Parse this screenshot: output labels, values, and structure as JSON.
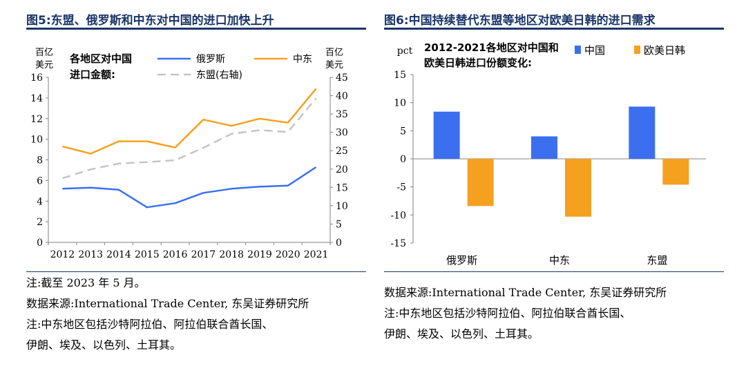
{
  "left": {
    "title": "图5:东盟、俄罗斯和中东对中国的进口加快上升",
    "notes": [
      "注:截至 2023 年 5 月。",
      "数据来源:International Trade Center, 东吴证券研究所",
      "注:中东地区包括沙特阿拉伯、阿拉伯联合酋长国、",
      "伊朗、埃及、以色列、土耳其。"
    ],
    "chart_data": {
      "type": "line",
      "title": "各地区对中国进口金额:",
      "x": [
        "2012",
        "2013",
        "2014",
        "2015",
        "2016",
        "2017",
        "2018",
        "2019",
        "2020",
        "2021"
      ],
      "left_axis_unit": "百亿美元",
      "right_axis_unit": "百亿美元",
      "left_ylim": [
        0,
        16
      ],
      "left_ticks": [
        "0",
        "2",
        "4",
        "6",
        "8",
        "10",
        "12",
        "14",
        "16"
      ],
      "right_ylim": [
        0,
        45
      ],
      "right_ticks": [
        "0",
        "5",
        "10",
        "15",
        "20",
        "25",
        "30",
        "35",
        "40",
        "45"
      ],
      "series": [
        {
          "name": "俄罗斯",
          "axis": "left",
          "color": "#3b6ff0",
          "dash": false,
          "values": [
            5.2,
            5.3,
            5.1,
            3.4,
            3.8,
            4.8,
            5.2,
            5.4,
            5.5,
            7.3
          ]
        },
        {
          "name": "中东",
          "axis": "left",
          "color": "#f5a01f",
          "dash": false,
          "values": [
            9.3,
            8.6,
            9.8,
            9.8,
            9.2,
            11.9,
            11.3,
            12.0,
            11.6,
            14.9
          ]
        },
        {
          "name": "东盟(右轴)",
          "axis": "right",
          "color": "#c4c4c4",
          "dash": true,
          "values": [
            17.5,
            19.9,
            21.5,
            21.9,
            22.4,
            25.8,
            29.6,
            30.6,
            30.1,
            39.3
          ]
        }
      ]
    }
  },
  "right": {
    "title": "图6:中国持续替代东盟等地区对欧美日韩的进口需求",
    "notes": [
      "数据来源:International Trade Center, 东吴证券研究所",
      "注:中东地区包括沙特阿拉伯、阿拉伯联合酋长国、",
      "伊朗、埃及、以色列、土耳其。"
    ],
    "chart_data": {
      "type": "bar",
      "title": [
        "2012-2021各地区对中国和",
        "欧美日韩进口份额变化:"
      ],
      "ylabel": "pct",
      "categories": [
        "俄罗斯",
        "中东",
        "东盟"
      ],
      "ylim": [
        -15,
        15
      ],
      "y_ticks": [
        "15",
        "10",
        "5",
        "0",
        "-5",
        "-10",
        "-15"
      ],
      "series": [
        {
          "name": "中国",
          "color": "#3b6ff0",
          "values": [
            8.4,
            4.0,
            9.3
          ]
        },
        {
          "name": "欧美日韩",
          "color": "#f5a01f",
          "values": [
            -8.4,
            -10.3,
            -4.6
          ]
        }
      ]
    }
  }
}
